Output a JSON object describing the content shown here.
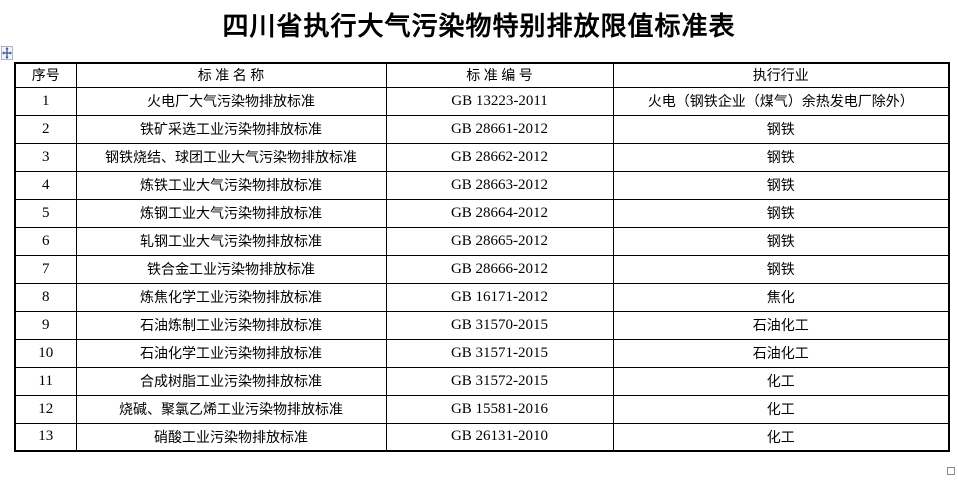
{
  "title": "四川省执行大气污染物特别排放限值标准表",
  "table": {
    "headers": {
      "index": "序号",
      "name": "标 准 名 称",
      "code": "标 准 编 号",
      "industry": "执行行业"
    },
    "rows": [
      {
        "index": "1",
        "name": "火电厂大气污染物排放标准",
        "code": "GB 13223-2011",
        "industry": "火电（钢铁企业（煤气）余热发电厂除外）"
      },
      {
        "index": "2",
        "name": "铁矿采选工业污染物排放标准",
        "code": "GB 28661-2012",
        "industry": "钢铁"
      },
      {
        "index": "3",
        "name": "钢铁烧结、球团工业大气污染物排放标准",
        "code": "GB 28662-2012",
        "industry": "钢铁"
      },
      {
        "index": "4",
        "name": "炼铁工业大气污染物排放标准",
        "code": "GB 28663-2012",
        "industry": "钢铁"
      },
      {
        "index": "5",
        "name": "炼钢工业大气污染物排放标准",
        "code": "GB 28664-2012",
        "industry": "钢铁"
      },
      {
        "index": "6",
        "name": "轧钢工业大气污染物排放标准",
        "code": "GB 28665-2012",
        "industry": "钢铁"
      },
      {
        "index": "7",
        "name": "铁合金工业污染物排放标准",
        "code": "GB 28666-2012",
        "industry": "钢铁"
      },
      {
        "index": "8",
        "name": "炼焦化学工业污染物排放标准",
        "code": "GB 16171-2012",
        "industry": "焦化"
      },
      {
        "index": "9",
        "name": "石油炼制工业污染物排放标准",
        "code": "GB 31570-2015",
        "industry": "石油化工"
      },
      {
        "index": "10",
        "name": "石油化学工业污染物排放标准",
        "code": "GB 31571-2015",
        "industry": "石油化工"
      },
      {
        "index": "11",
        "name": "合成树脂工业污染物排放标准",
        "code": "GB 31572-2015",
        "industry": "化工"
      },
      {
        "index": "12",
        "name": "烧碱、聚氯乙烯工业污染物排放标准",
        "code": "GB 15581-2016",
        "industry": "化工"
      },
      {
        "index": "13",
        "name": "硝酸工业污染物排放标准",
        "code": "GB 26131-2010",
        "industry": "化工"
      }
    ]
  },
  "icons": {
    "move_handle": "table-move-handle-icon",
    "resize_handle": "table-resize-handle"
  },
  "colors": {
    "border": "#000000",
    "text": "#000000",
    "move_arrow": "#2f4f8f",
    "handle_border": "#888888",
    "background": "#ffffff"
  }
}
